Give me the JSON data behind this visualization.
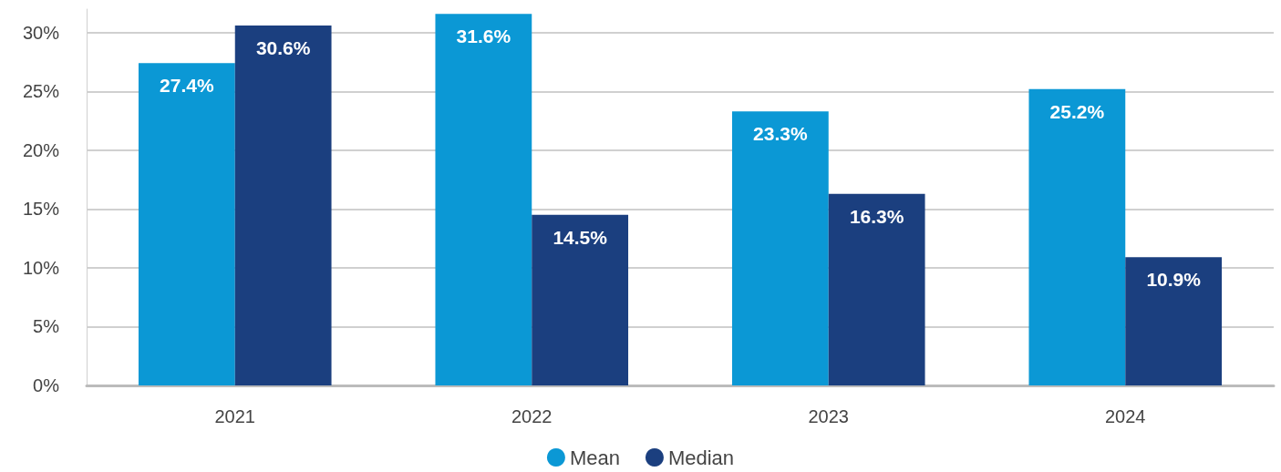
{
  "chart_data": {
    "type": "bar",
    "categories": [
      "2021",
      "2022",
      "2023",
      "2024"
    ],
    "series": [
      {
        "name": "Mean",
        "color": "#0b98d5",
        "values": [
          27.4,
          31.6,
          23.3,
          25.2
        ],
        "value_labels": [
          "27.4%",
          "31.6%",
          "23.3%",
          "25.2%"
        ]
      },
      {
        "name": "Median",
        "color": "#1b3f7f",
        "values": [
          30.6,
          14.5,
          16.3,
          10.9
        ],
        "value_labels": [
          "30.6%",
          "14.5%",
          "16.3%",
          "10.9%"
        ]
      }
    ],
    "ylim": [
      0,
      32
    ],
    "yticks": [
      {
        "value": 0,
        "label": "0%"
      },
      {
        "value": 5,
        "label": "5%"
      },
      {
        "value": 10,
        "label": "10%"
      },
      {
        "value": 15,
        "label": "15%"
      },
      {
        "value": 20,
        "label": "20%"
      },
      {
        "value": 25,
        "label": "25%"
      },
      {
        "value": 30,
        "label": "30%"
      }
    ],
    "grid": "y",
    "legend": "bottom"
  }
}
